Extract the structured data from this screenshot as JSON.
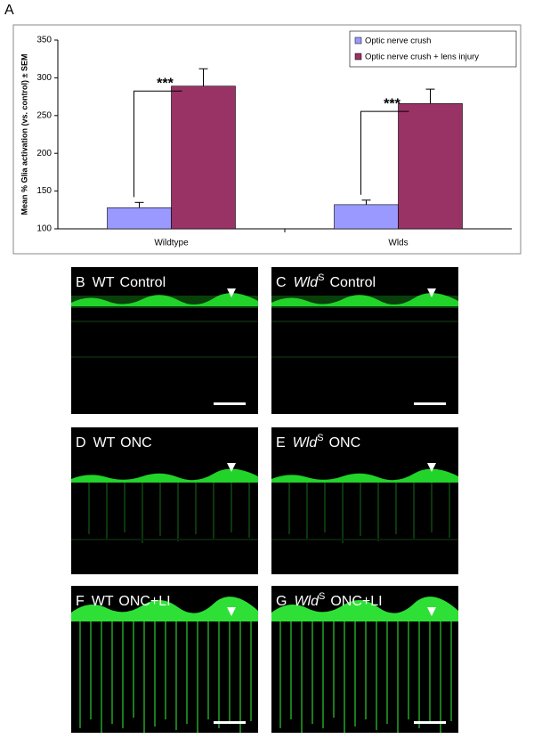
{
  "figure_label": "A",
  "chart_data": {
    "type": "bar",
    "ylabel": "Mean % Glia activation (vs. control) ± SEM",
    "categories": [
      "Wildtype",
      "Wlds"
    ],
    "series": [
      {
        "name": "Optic nerve crush",
        "color": "#9999ff",
        "values": [
          128,
          132
        ],
        "errors": [
          7,
          6
        ]
      },
      {
        "name": "Optic nerve crush + lens injury",
        "color": "#993366",
        "values": [
          289,
          266
        ],
        "errors": [
          23,
          19
        ]
      }
    ],
    "annotations": [
      "***",
      "***"
    ],
    "ylim": [
      100,
      350
    ],
    "yticks": [
      100,
      150,
      200,
      250,
      300,
      350
    ],
    "legend": "upper right",
    "grid": false
  },
  "panels": [
    {
      "letter": "B",
      "genotype": "WT",
      "condition": "Control"
    },
    {
      "letter": "C",
      "genotype": "Wld",
      "superscript": "S",
      "condition": "Control"
    },
    {
      "letter": "D",
      "genotype": "WT",
      "condition": "ONC"
    },
    {
      "letter": "E",
      "genotype": "Wld",
      "superscript": "S",
      "condition": "ONC"
    },
    {
      "letter": "F",
      "genotype": "WT",
      "condition": "ONC+LI"
    },
    {
      "letter": "G",
      "genotype": "Wld",
      "superscript": "S",
      "condition": "ONC+LI"
    }
  ]
}
